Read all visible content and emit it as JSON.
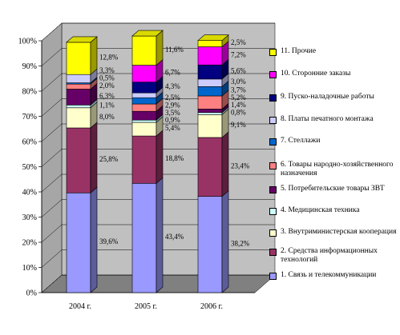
{
  "chart_data": {
    "type": "bar",
    "stacked": true,
    "percent": true,
    "three_d": true,
    "title": "",
    "xlabel": "",
    "ylabel": "",
    "ylim": [
      0,
      100
    ],
    "y_ticks": [
      "0%",
      "10%",
      "20%",
      "30%",
      "40%",
      "50%",
      "60%",
      "70%",
      "80%",
      "90%",
      "100%"
    ],
    "categories": [
      "2004 г.",
      "2005 г.",
      "2006 г."
    ],
    "legend_position": "right",
    "series": [
      {
        "name": "1. Связь и телекоммуникации",
        "color": "#9999ff",
        "values": [
          39.6,
          43.4,
          38.2
        ],
        "labels": [
          "39,6%",
          "43,4%",
          "38,2%"
        ]
      },
      {
        "name": "2. Средства информационных технологий",
        "color": "#993366",
        "values": [
          25.8,
          18.8,
          23.4
        ],
        "labels": [
          "25,8%",
          "18,8%",
          "23,4%"
        ]
      },
      {
        "name": "3. Внутриминистерская кооперация",
        "color": "#ffffcc",
        "values": [
          8.0,
          5.4,
          9.1
        ],
        "labels": [
          "8,0%",
          "5,4%",
          "9,1%"
        ]
      },
      {
        "name": "4. Медицинская техника",
        "color": "#ccffff",
        "values": [
          1.1,
          0.9,
          0.8
        ],
        "labels": [
          "1,1%",
          "0,9%",
          "0,8%"
        ]
      },
      {
        "name": "5. Потребительские товары ЗВТ",
        "color": "#660066",
        "values": [
          6.3,
          3.5,
          1.4
        ],
        "labels": [
          "6,3%",
          "3,5%",
          "1,4%"
        ]
      },
      {
        "name": "6. Товары народно-хозяйственного назначения",
        "color": "#ff8080",
        "values": [
          2.0,
          2.9,
          5.2
        ],
        "labels": [
          "2,0%",
          "2,9%",
          "5,2%"
        ]
      },
      {
        "name": "7. Стеллажи",
        "color": "#0066cc",
        "values": [
          0.5,
          2.5,
          3.7
        ],
        "labels": [
          "0,5%",
          "2,5%",
          "3,7%"
        ]
      },
      {
        "name": "8. Платы печатного монтажа",
        "color": "#ccccff",
        "values": [
          3.3,
          1.9,
          3.0
        ],
        "labels": [
          "3,3%",
          "",
          "3,0%"
        ]
      },
      {
        "name": "9. Пуско-наладочные работы",
        "color": "#000080",
        "values": [
          0,
          4.3,
          5.6
        ],
        "labels": [
          "",
          "4,3%",
          "5,6%"
        ]
      },
      {
        "name": "10. Сторонние заказы",
        "color": "#ff00ff",
        "values": [
          0,
          6.7,
          7.2
        ],
        "labels": [
          "",
          "6,7%",
          "7,2%"
        ]
      },
      {
        "name": "11. Прочие",
        "color": "#ffff00",
        "values": [
          12.8,
          11.6,
          2.5
        ],
        "labels": [
          "12,8%",
          "11,6%",
          "2,5%"
        ]
      }
    ]
  }
}
